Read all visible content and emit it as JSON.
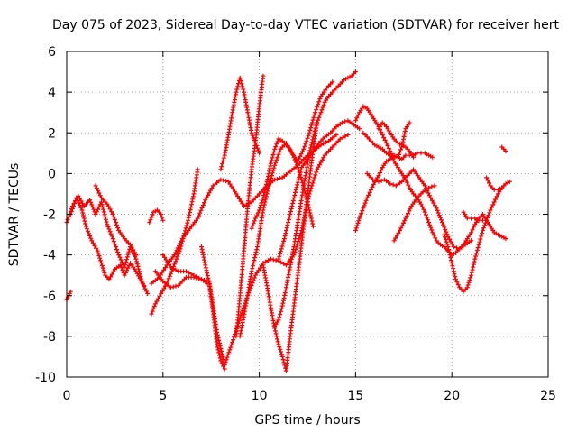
{
  "chart_data": {
    "type": "scatter",
    "title": "Day 075 of 2023, Sidereal Day-to-day VTEC variation (SDTVAR) for receiver hert",
    "xlabel": "GPS time / hours",
    "ylabel": "SDTVAR / TECUs",
    "xlim": [
      0,
      25
    ],
    "ylim": [
      -10,
      6
    ],
    "xticks": [
      "0",
      "5",
      "10",
      "15",
      "20",
      "25"
    ],
    "yticks": [
      "-10",
      "-8",
      "-6",
      "-4",
      "-2",
      "0",
      "2",
      "4",
      "6"
    ],
    "grid": true,
    "marker": "+",
    "color": "#ff0000",
    "series": [
      {
        "x": [
          0.0,
          0.3,
          0.6,
          0.9,
          1.2,
          1.5,
          1.8,
          2.1,
          2.4,
          2.7,
          3.0,
          3.3,
          3.6,
          3.9,
          4.2
        ],
        "y": [
          -2.4,
          -1.6,
          -1.1,
          -1.6,
          -1.3,
          -2.0,
          -1.4,
          -2.5,
          -3.2,
          -4.0,
          -4.6,
          -3.6,
          -4.2,
          -5.3,
          -5.9
        ]
      },
      {
        "x": [
          0.0,
          0.1,
          0.2
        ],
        "y": [
          -6.2,
          -6.0,
          -5.8
        ]
      },
      {
        "x": [
          0.2,
          0.5,
          0.8,
          1.0,
          1.3,
          1.6,
          1.8,
          2.0,
          2.2,
          2.5,
          2.8,
          3.0,
          3.3,
          3.6,
          4.0
        ],
        "y": [
          -2.0,
          -1.2,
          -1.8,
          -2.6,
          -3.3,
          -3.8,
          -4.4,
          -5.0,
          -5.2,
          -4.7,
          -4.5,
          -5.0,
          -4.4,
          -4.8,
          -5.5
        ]
      },
      {
        "x": [
          1.5,
          1.8,
          2.1,
          2.4,
          2.7,
          3.0,
          3.3,
          3.6
        ],
        "y": [
          -0.6,
          -1.2,
          -1.5,
          -2.0,
          -2.8,
          -3.2,
          -3.5,
          -4.0
        ]
      },
      {
        "x": [
          4.3,
          4.5,
          4.7,
          4.9,
          5.0
        ],
        "y": [
          -2.4,
          -1.9,
          -1.8,
          -2.0,
          -2.3
        ]
      },
      {
        "x": [
          4.4,
          4.8,
          5.2,
          5.6,
          6.0,
          6.4,
          6.8,
          7.2,
          7.6,
          8.0,
          8.4,
          8.8,
          9.2,
          9.6,
          10.0,
          10.4,
          10.8,
          11.2,
          11.6,
          12.0,
          12.4,
          12.8,
          13.2,
          13.6,
          14.0
        ],
        "y": [
          -5.4,
          -5.1,
          -4.5,
          -4.0,
          -3.2,
          -2.7,
          -2.2,
          -1.3,
          -0.6,
          -0.3,
          -0.4,
          -1.0,
          -1.6,
          -1.4,
          -1.0,
          -0.6,
          -0.3,
          -0.2,
          0.1,
          0.4,
          0.8,
          1.1,
          1.4,
          1.6,
          1.9
        ]
      },
      {
        "x": [
          4.4,
          4.6,
          4.9,
          5.2,
          5.5,
          5.9,
          6.3,
          6.6,
          6.8
        ],
        "y": [
          -6.9,
          -6.4,
          -5.9,
          -5.4,
          -4.7,
          -3.7,
          -2.3,
          -1.0,
          0.2
        ]
      },
      {
        "x": [
          4.6,
          5.0,
          5.4,
          5.8,
          6.2,
          6.6,
          7.0,
          7.3
        ],
        "y": [
          -4.8,
          -5.3,
          -5.6,
          -5.5,
          -5.1,
          -5.1,
          -5.2,
          -5.4
        ]
      },
      {
        "x": [
          5.0,
          5.4,
          5.8,
          6.2,
          6.6,
          7.0,
          7.4,
          7.8,
          8.2,
          8.6,
          9.0,
          9.4,
          9.8,
          10.2,
          10.6,
          11.0,
          11.4,
          11.8,
          12.2,
          12.6,
          13.0,
          13.4,
          13.8,
          14.2,
          14.6
        ],
        "y": [
          -4.0,
          -4.6,
          -4.8,
          -4.8,
          -5.0,
          -5.2,
          -5.3,
          -7.8,
          -9.4,
          -8.3,
          -7.1,
          -6.0,
          -5.0,
          -4.4,
          -4.2,
          -4.3,
          -4.5,
          -4.0,
          -2.8,
          -1.0,
          0.2,
          0.9,
          1.3,
          1.7,
          1.9
        ]
      },
      {
        "x": [
          7.0,
          7.2,
          7.4,
          7.6,
          7.8,
          8.0,
          8.2
        ],
        "y": [
          -3.6,
          -4.5,
          -5.4,
          -6.8,
          -8.4,
          -9.2,
          -9.6
        ]
      },
      {
        "x": [
          8.0,
          8.2,
          8.4,
          8.6,
          8.8,
          9.0,
          9.2,
          9.4,
          9.6,
          9.8,
          10.0
        ],
        "y": [
          0.2,
          0.9,
          1.9,
          3.0,
          4.0,
          4.7,
          4.0,
          3.0,
          2.0,
          1.5,
          1.0
        ]
      },
      {
        "x": [
          8.8,
          9.0,
          9.2,
          9.4,
          9.6,
          9.8,
          10.0,
          10.2
        ],
        "y": [
          -8.0,
          -6.0,
          -3.8,
          -1.6,
          0.2,
          1.5,
          3.3,
          4.8
        ]
      },
      {
        "x": [
          9.0,
          9.3,
          9.6,
          9.9,
          10.2,
          10.5,
          10.8,
          11.1,
          11.4,
          11.7,
          12.0,
          12.3,
          12.6,
          12.9,
          13.2,
          13.5,
          13.8
        ],
        "y": [
          -8.0,
          -6.5,
          -4.8,
          -3.6,
          -1.8,
          -0.6,
          0.4,
          1.2,
          1.5,
          1.0,
          0.6,
          1.2,
          2.0,
          3.0,
          3.8,
          4.2,
          4.5
        ]
      },
      {
        "x": [
          9.6,
          9.8,
          10.0,
          10.2,
          10.4,
          10.6,
          10.8,
          11.0,
          11.2,
          11.4,
          11.6,
          11.8,
          12.0,
          12.2,
          12.4,
          12.6,
          12.8
        ],
        "y": [
          -2.7,
          -2.2,
          -1.8,
          -1.2,
          -0.4,
          0.5,
          1.2,
          1.7,
          1.6,
          1.4,
          1.2,
          0.8,
          0.3,
          -0.3,
          -1.0,
          -1.8,
          -2.6
        ]
      },
      {
        "x": [
          10.2,
          10.4,
          10.6,
          10.8,
          11.0,
          11.2,
          11.4,
          11.6,
          11.8,
          12.0,
          12.2,
          12.4,
          12.6,
          12.8,
          13.0
        ],
        "y": [
          -4.5,
          -5.5,
          -6.6,
          -7.6,
          -8.4,
          -9.0,
          -9.7,
          -8.0,
          -6.5,
          -5.0,
          -3.4,
          -1.8,
          -0.3,
          1.2,
          2.5
        ]
      },
      {
        "x": [
          10.8,
          11.0,
          11.2,
          11.4,
          11.6,
          11.8,
          12.0,
          12.2,
          12.4,
          12.6,
          12.8,
          13.0,
          13.2,
          13.4,
          13.6,
          13.8,
          14.0,
          14.2,
          14.4,
          14.6,
          14.8,
          15.0
        ],
        "y": [
          -7.5,
          -7.2,
          -6.5,
          -5.6,
          -4.6,
          -3.6,
          -2.4,
          -1.2,
          -0.1,
          1.0,
          1.8,
          2.5,
          3.0,
          3.5,
          3.8,
          4.0,
          4.2,
          4.4,
          4.6,
          4.7,
          4.8,
          5.0
        ]
      },
      {
        "x": [
          11.0,
          11.3,
          11.6,
          11.9,
          12.2,
          12.5,
          12.8,
          13.1,
          13.4,
          13.7,
          14.0,
          14.3,
          14.6,
          14.9,
          15.2
        ],
        "y": [
          -4.2,
          -3.2,
          -2.0,
          -0.8,
          0.3,
          0.7,
          1.1,
          1.5,
          1.8,
          2.0,
          2.3,
          2.5,
          2.6,
          2.4,
          2.2
        ]
      },
      {
        "x": [
          15.0,
          15.2,
          15.4,
          15.6,
          15.8,
          16.0,
          16.2,
          16.4,
          16.6,
          16.8,
          17.0,
          17.2,
          17.4,
          17.6,
          17.8,
          18.0,
          18.2,
          18.4,
          18.6,
          18.8,
          19.0,
          19.2,
          19.4,
          19.6,
          19.8,
          20.0,
          20.2,
          20.4,
          20.6,
          20.8,
          21.0,
          21.2,
          21.4,
          21.6,
          21.8,
          22.0,
          22.2,
          22.4,
          22.6,
          22.8
        ],
        "y": [
          2.6,
          3.0,
          3.3,
          3.2,
          2.9,
          2.6,
          2.3,
          1.9,
          1.5,
          1.1,
          0.6,
          0.3,
          0.0,
          -0.3,
          -0.7,
          -1.0,
          -1.2,
          -1.5,
          -1.9,
          -2.4,
          -2.9,
          -3.3,
          -3.5,
          -3.6,
          -3.8,
          -4.0,
          -3.9,
          -3.7,
          -3.5,
          -3.2,
          -2.9,
          -2.5,
          -2.2,
          -2.0,
          -2.3,
          -2.6,
          -2.9,
          -3.0,
          -3.1,
          -3.2
        ]
      },
      {
        "x": [
          15.0,
          15.2,
          15.4,
          15.6,
          15.8,
          16.0,
          16.2,
          16.4,
          16.6,
          16.8,
          17.0,
          17.2,
          17.4,
          17.6,
          17.8
        ],
        "y": [
          -2.8,
          -2.2,
          -1.7,
          -1.2,
          -0.8,
          -0.4,
          -0.1,
          0.3,
          0.6,
          0.7,
          0.9,
          0.8,
          1.3,
          2.2,
          2.5
        ]
      },
      {
        "x": [
          15.4,
          15.6,
          15.8,
          16.0,
          16.2,
          16.4,
          16.6,
          16.8,
          17.0,
          17.2,
          17.4,
          17.6,
          17.8,
          18.0,
          18.2,
          18.4,
          18.6,
          18.8,
          19.0
        ],
        "y": [
          2.0,
          1.8,
          1.6,
          1.4,
          1.3,
          1.2,
          1.0,
          0.9,
          0.8,
          0.8,
          0.7,
          0.9,
          0.9,
          0.9,
          1.0,
          1.0,
          1.0,
          0.9,
          0.8
        ]
      },
      {
        "x": [
          15.6,
          15.9,
          16.2,
          16.5,
          16.8,
          17.1,
          17.4,
          17.7,
          18.0,
          18.3,
          18.6,
          18.9,
          19.2,
          19.5,
          19.8,
          20.1,
          20.4,
          20.7,
          21.0
        ],
        "y": [
          0.0,
          -0.3,
          -0.4,
          -0.3,
          -0.5,
          -0.6,
          -0.4,
          -0.1,
          0.2,
          -0.2,
          -0.6,
          -1.2,
          -1.7,
          -2.4,
          -3.1,
          -3.6,
          -3.7,
          -3.5,
          -3.3
        ]
      },
      {
        "x": [
          16.2,
          16.4,
          16.6,
          16.8,
          17.0,
          17.2,
          17.4,
          17.6,
          17.8,
          18.0
        ],
        "y": [
          2.2,
          2.5,
          2.3,
          2.0,
          1.7,
          1.5,
          1.4,
          1.3,
          1.1,
          0.8
        ]
      },
      {
        "x": [
          17.0,
          17.3,
          17.6,
          17.9,
          18.2,
          18.5,
          18.8,
          19.1
        ],
        "y": [
          -3.3,
          -2.8,
          -2.2,
          -1.6,
          -1.2,
          -0.9,
          -0.7,
          -0.6
        ]
      },
      {
        "x": [
          19.6,
          19.8,
          20.0,
          20.2,
          20.4,
          20.6,
          20.8,
          21.0,
          21.2,
          21.4,
          21.6,
          21.8,
          22.0,
          22.2,
          22.4,
          22.6,
          22.8,
          23.0
        ],
        "y": [
          -3.0,
          -3.6,
          -4.4,
          -5.2,
          -5.6,
          -5.8,
          -5.6,
          -5.0,
          -4.2,
          -3.5,
          -2.8,
          -2.3,
          -1.8,
          -1.4,
          -1.0,
          -0.7,
          -0.5,
          -0.4
        ]
      },
      {
        "x": [
          20.6,
          20.8,
          21.0,
          21.2,
          21.4,
          21.6
        ],
        "y": [
          -1.9,
          -2.2,
          -2.2,
          -2.2,
          -2.3,
          -2.3
        ]
      },
      {
        "x": [
          21.8,
          22.0,
          22.2,
          22.4,
          22.6
        ],
        "y": [
          -0.2,
          -0.6,
          -0.8,
          -0.8,
          -0.7
        ]
      },
      {
        "x": [
          22.6,
          22.8
        ],
        "y": [
          1.3,
          1.1
        ]
      }
    ]
  }
}
